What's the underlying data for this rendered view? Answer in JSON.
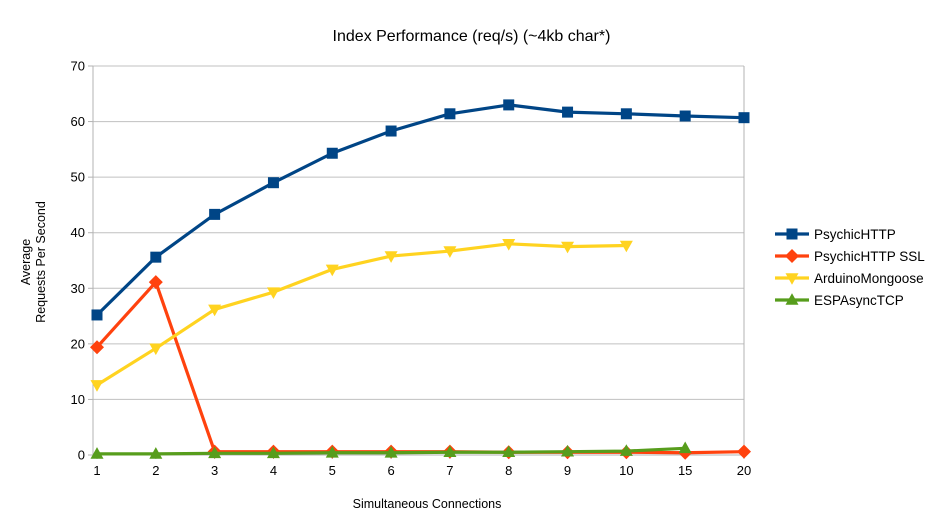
{
  "chart_data": {
    "type": "line",
    "title": "Index Performance (req/s) (~4kb char*)",
    "xlabel": "Simultaneous Connections",
    "ylabel": "Average\nRequests Per Second",
    "categories": [
      "1",
      "2",
      "3",
      "4",
      "5",
      "6",
      "7",
      "8",
      "9",
      "10",
      "15",
      "20"
    ],
    "ylim": [
      0,
      70
    ],
    "y_tick_step": 10,
    "y_tick_labels": [
      "0",
      "10",
      "20",
      "30",
      "40",
      "50",
      "60",
      "70"
    ],
    "grid": "horizontal-on",
    "legend_position": "right",
    "series": [
      {
        "name": "PsychicHTTP",
        "color": "#004586",
        "marker": "square",
        "values": [
          25.2,
          35.6,
          43.3,
          49.0,
          54.3,
          58.3,
          61.4,
          63.0,
          61.7,
          61.4,
          61.0,
          60.7
        ]
      },
      {
        "name": "PsychicHTTP SSL",
        "color": "#FF420E",
        "marker": "diamond",
        "values": [
          19.4,
          31.1,
          0.6,
          0.6,
          0.6,
          0.6,
          0.6,
          0.5,
          0.5,
          0.5,
          0.4,
          0.6
        ]
      },
      {
        "name": "ArduinoMongoose",
        "color": "#FFD320",
        "marker": "triangle-down",
        "values": [
          12.6,
          19.2,
          26.2,
          29.3,
          33.4,
          35.8,
          36.7,
          38.0,
          37.5,
          37.7
        ]
      },
      {
        "name": "ESPAsyncTCP",
        "color": "#579D1C",
        "marker": "triangle-up",
        "values": [
          0.2,
          0.2,
          0.3,
          0.3,
          0.4,
          0.4,
          0.5,
          0.5,
          0.6,
          0.7,
          1.2
        ]
      }
    ],
    "style": {
      "axis_color": "#B3B3B3",
      "grid_color": "#C0C0C0",
      "text_color": "#000000",
      "background": "#FFFFFF"
    }
  }
}
